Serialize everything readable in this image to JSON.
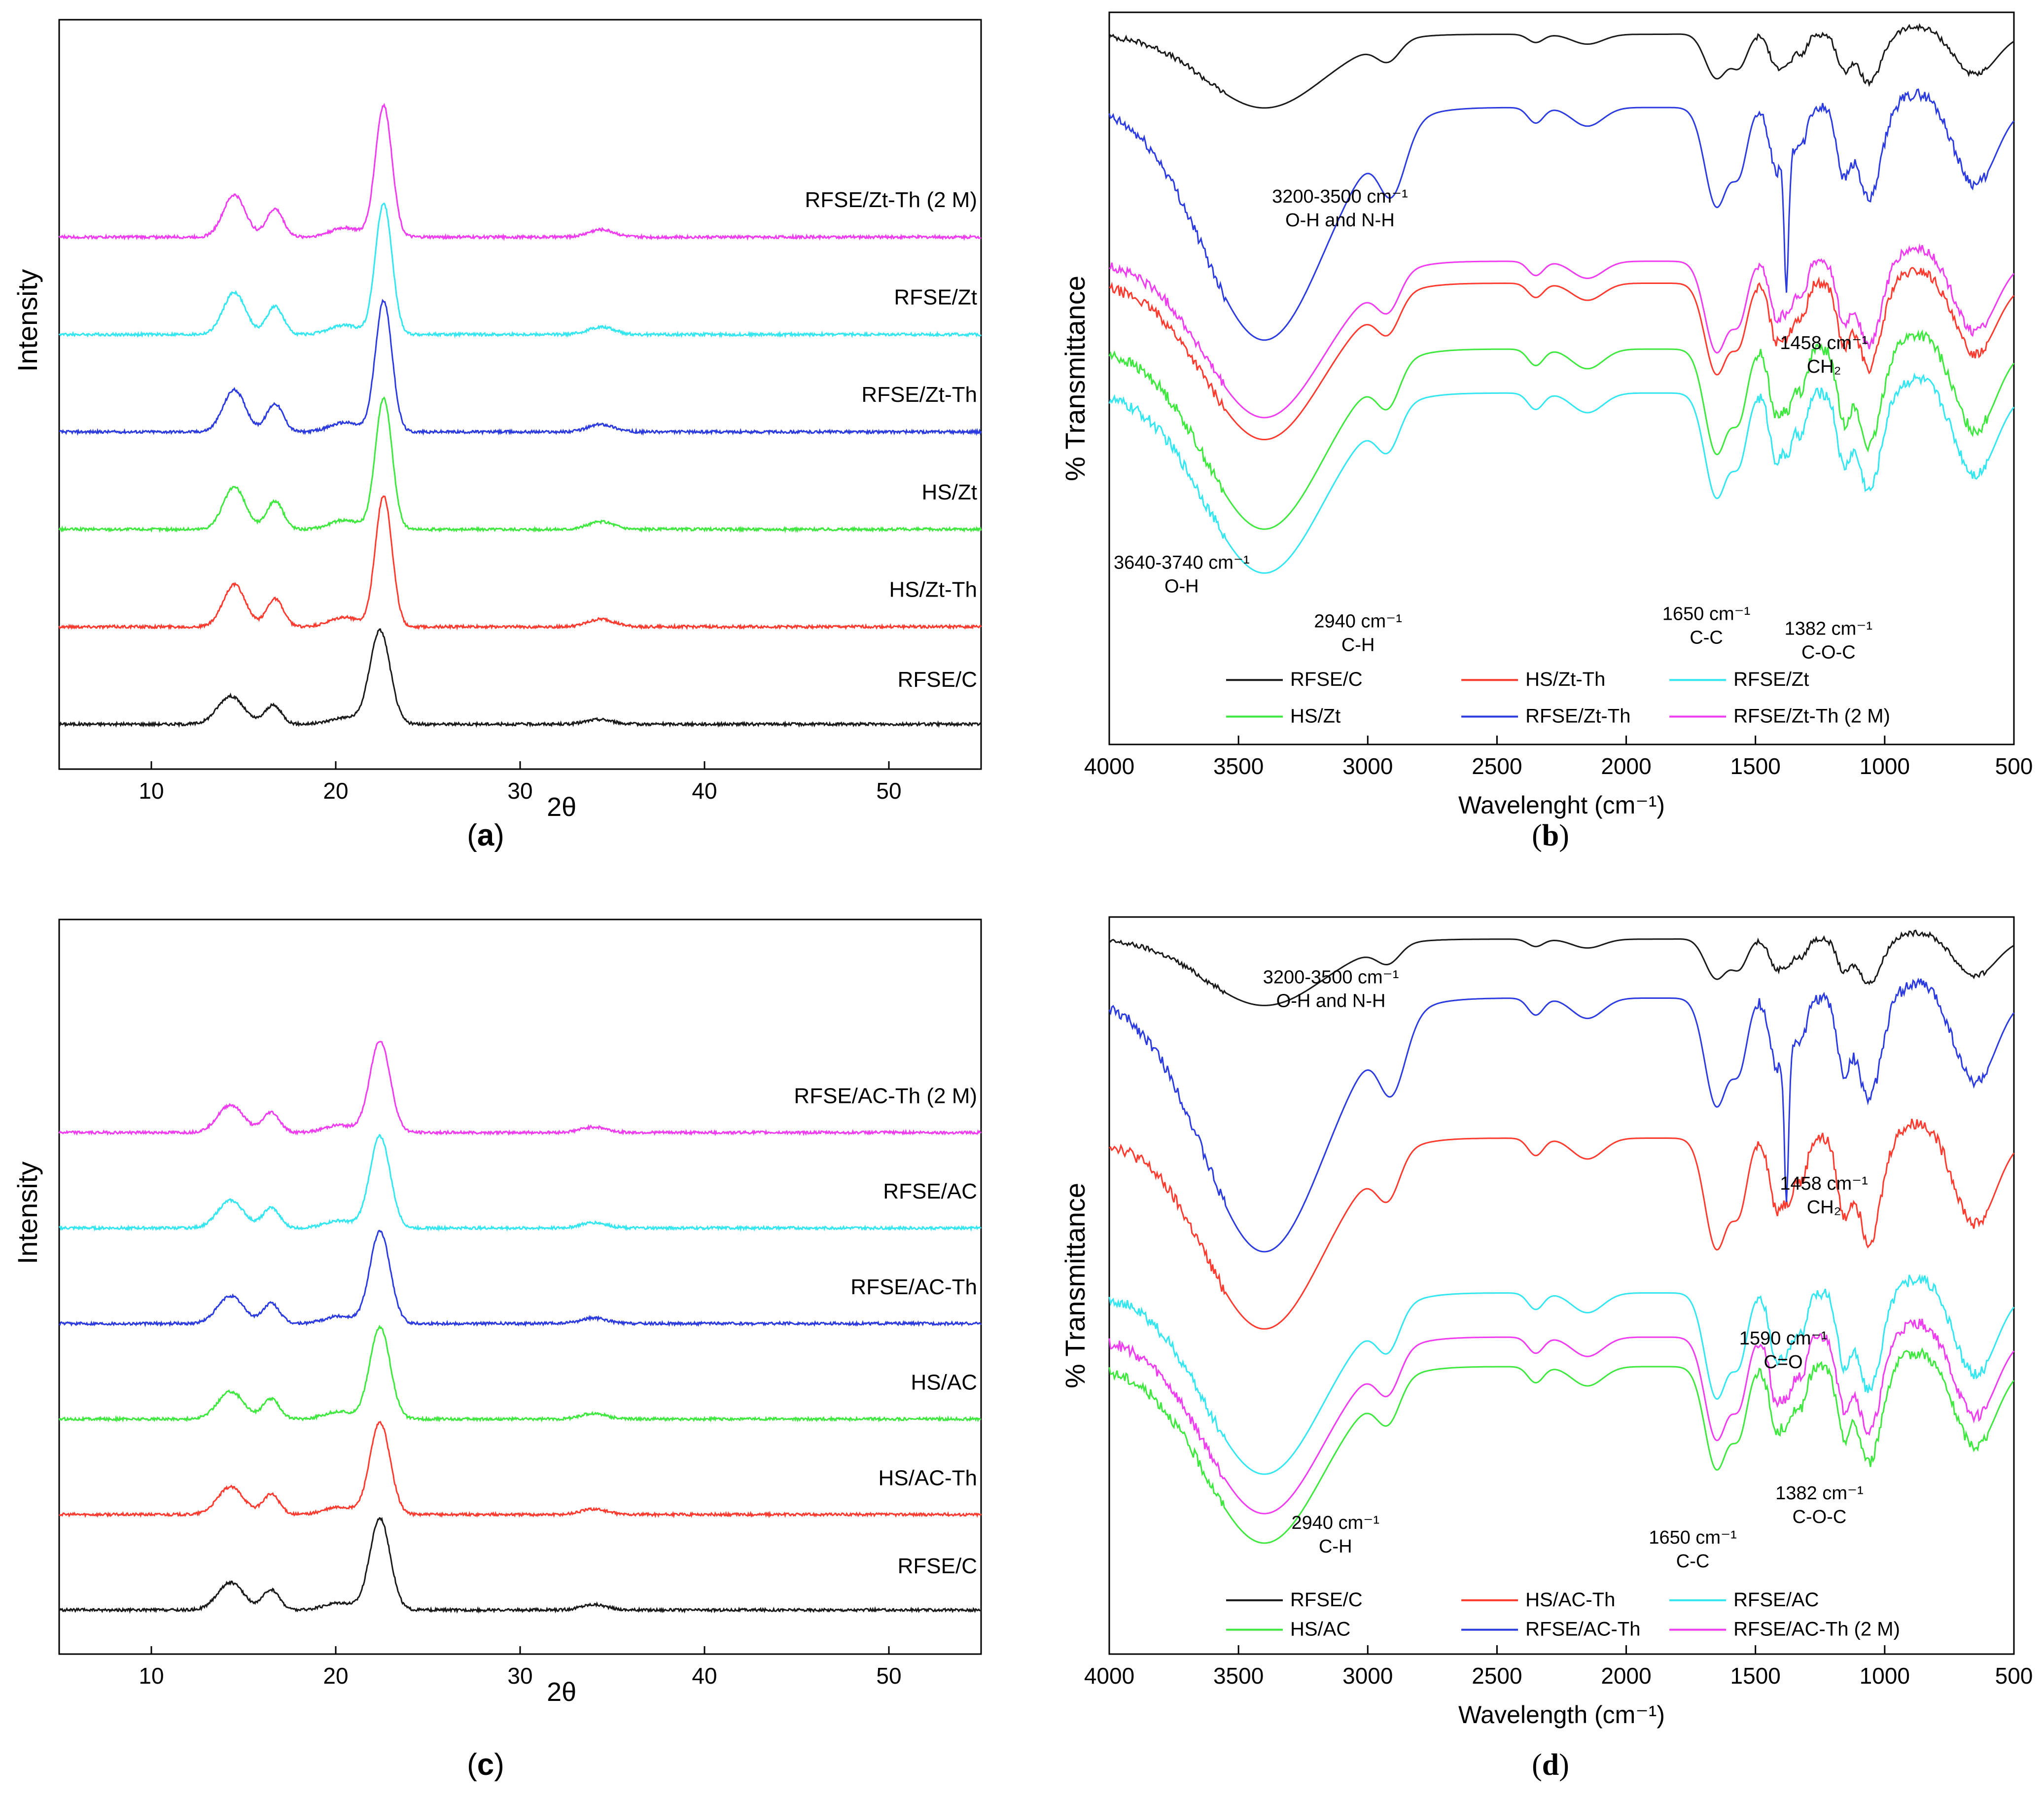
{
  "colors": {
    "black": "#1a1a1a",
    "red": "#ff3b30",
    "cyan": "#33e6f0",
    "green": "#3ee83e",
    "blue": "#2b3be0",
    "magenta": "#f03cf0"
  },
  "chart_data": [
    {
      "id": "a",
      "caption": "a",
      "type": "line",
      "title": "",
      "xlabel": "2θ",
      "ylabel": "Intensity",
      "xlim": [
        5,
        55
      ],
      "xticks": [
        10,
        20,
        30,
        40,
        50
      ],
      "grid": false,
      "series": [
        {
          "name": "RFSE/C",
          "color": "#1a1a1a",
          "offset": 0,
          "peaks": [
            [
              14.3,
              0.7,
              0.3
            ],
            [
              16.6,
              0.45,
              0.2
            ],
            [
              20.5,
              0.8,
              0.07
            ],
            [
              22.4,
              0.55,
              1.0
            ],
            [
              34.3,
              0.7,
              0.05
            ]
          ]
        },
        {
          "name": "HS/Zt-Th",
          "color": "#ff3b30",
          "offset": 1,
          "peaks": [
            [
              14.5,
              0.6,
              0.45
            ],
            [
              16.7,
              0.45,
              0.3
            ],
            [
              20.5,
              0.8,
              0.1
            ],
            [
              22.6,
              0.45,
              1.4
            ],
            [
              34.4,
              0.7,
              0.08
            ]
          ]
        },
        {
          "name": "HS/Zt",
          "color": "#3ee83e",
          "offset": 2,
          "peaks": [
            [
              14.5,
              0.6,
              0.45
            ],
            [
              16.7,
              0.45,
              0.3
            ],
            [
              20.5,
              0.8,
              0.1
            ],
            [
              22.6,
              0.45,
              1.4
            ],
            [
              34.4,
              0.7,
              0.08
            ]
          ]
        },
        {
          "name": "RFSE/Zt-Th",
          "color": "#2b3be0",
          "offset": 3,
          "peaks": [
            [
              14.5,
              0.6,
              0.45
            ],
            [
              16.7,
              0.45,
              0.3
            ],
            [
              20.5,
              0.8,
              0.1
            ],
            [
              22.6,
              0.45,
              1.4
            ],
            [
              34.4,
              0.7,
              0.08
            ]
          ]
        },
        {
          "name": "RFSE/Zt",
          "color": "#33e6f0",
          "offset": 4,
          "peaks": [
            [
              14.5,
              0.6,
              0.45
            ],
            [
              16.7,
              0.45,
              0.3
            ],
            [
              20.5,
              0.8,
              0.1
            ],
            [
              22.6,
              0.45,
              1.4
            ],
            [
              34.4,
              0.7,
              0.08
            ]
          ]
        },
        {
          "name": "RFSE/Zt-Th (2 M)",
          "color": "#f03cf0",
          "offset": 5,
          "peaks": [
            [
              14.5,
              0.6,
              0.45
            ],
            [
              16.7,
              0.45,
              0.3
            ],
            [
              20.5,
              0.8,
              0.1
            ],
            [
              22.6,
              0.45,
              1.4
            ],
            [
              34.4,
              0.7,
              0.08
            ]
          ]
        }
      ]
    },
    {
      "id": "b",
      "caption": "b",
      "type": "line",
      "title": "",
      "xlabel": "Wavelenght (cm⁻¹)",
      "ylabel": "% Transmittance",
      "xlim": [
        4000,
        500
      ],
      "xticks": [
        4000,
        3500,
        3000,
        2500,
        2000,
        1500,
        1000,
        500
      ],
      "grid": false,
      "series": [
        {
          "name": "RFSE/C",
          "color": "#1a1a1a"
        },
        {
          "name": "HS/Zt",
          "color": "#3ee83e"
        },
        {
          "name": "HS/Zt-Th",
          "color": "#ff3b30"
        },
        {
          "name": "RFSE/Zt-Th",
          "color": "#2b3be0"
        },
        {
          "name": "RFSE/Zt",
          "color": "#33e6f0"
        },
        {
          "name": "RFSE/Zt-Th (2 M)",
          "color": "#f03cf0"
        }
      ],
      "annotations": [
        {
          "lines": [
            "3200-3500 cm⁻¹",
            "O-H and N-H"
          ],
          "x": 3350
        },
        {
          "lines": [
            "1458 cm⁻¹",
            "CH₂"
          ],
          "x": 1458
        },
        {
          "lines": [
            "3640-3740 cm⁻¹",
            "O-H"
          ],
          "x": 3690
        },
        {
          "lines": [
            "2940 cm⁻¹",
            "C-H"
          ],
          "x": 2940
        },
        {
          "lines": [
            "1650 cm⁻¹",
            "C-C"
          ],
          "x": 1650
        },
        {
          "lines": [
            "1382 cm⁻¹",
            "C-O-C"
          ],
          "x": 1382
        }
      ]
    },
    {
      "id": "c",
      "caption": "c",
      "type": "line",
      "title": "",
      "xlabel": "2θ",
      "ylabel": "Intensity",
      "xlim": [
        5,
        55
      ],
      "xticks": [
        10,
        20,
        30,
        40,
        50
      ],
      "grid": false,
      "series": [
        {
          "name": "RFSE/C",
          "color": "#1a1a1a",
          "offset": 0,
          "peaks": [
            [
              14.3,
              0.7,
              0.3
            ],
            [
              16.5,
              0.45,
              0.22
            ],
            [
              20.2,
              0.8,
              0.08
            ],
            [
              22.4,
              0.55,
              1.0
            ],
            [
              34.0,
              0.7,
              0.06
            ]
          ]
        },
        {
          "name": "HS/AC-Th",
          "color": "#ff3b30",
          "offset": 1,
          "peaks": [
            [
              14.3,
              0.7,
              0.3
            ],
            [
              16.5,
              0.45,
              0.22
            ],
            [
              20.2,
              0.8,
              0.08
            ],
            [
              22.4,
              0.55,
              1.0
            ],
            [
              34.0,
              0.7,
              0.06
            ]
          ]
        },
        {
          "name": "HS/AC",
          "color": "#3ee83e",
          "offset": 2,
          "peaks": [
            [
              14.3,
              0.7,
              0.3
            ],
            [
              16.5,
              0.45,
              0.22
            ],
            [
              20.2,
              0.8,
              0.08
            ],
            [
              22.4,
              0.55,
              1.0
            ],
            [
              34.0,
              0.7,
              0.06
            ]
          ]
        },
        {
          "name": "RFSE/AC-Th",
          "color": "#2b3be0",
          "offset": 3,
          "peaks": [
            [
              14.3,
              0.7,
              0.3
            ],
            [
              16.5,
              0.45,
              0.22
            ],
            [
              20.2,
              0.8,
              0.08
            ],
            [
              22.4,
              0.55,
              1.0
            ],
            [
              34.0,
              0.7,
              0.06
            ]
          ]
        },
        {
          "name": "RFSE/AC",
          "color": "#33e6f0",
          "offset": 4,
          "peaks": [
            [
              14.3,
              0.7,
              0.3
            ],
            [
              16.5,
              0.45,
              0.22
            ],
            [
              20.2,
              0.8,
              0.08
            ],
            [
              22.4,
              0.55,
              1.0
            ],
            [
              34.0,
              0.7,
              0.06
            ]
          ]
        },
        {
          "name": "RFSE/AC-Th (2 M)",
          "color": "#f03cf0",
          "offset": 5,
          "peaks": [
            [
              14.3,
              0.7,
              0.3
            ],
            [
              16.5,
              0.45,
              0.22
            ],
            [
              20.2,
              0.8,
              0.08
            ],
            [
              22.4,
              0.55,
              1.0
            ],
            [
              34.0,
              0.7,
              0.06
            ]
          ]
        }
      ]
    },
    {
      "id": "d",
      "caption": "d",
      "type": "line",
      "title": "",
      "xlabel": "Wavelength (cm⁻¹)",
      "ylabel": "% Transmittance",
      "xlim": [
        4000,
        500
      ],
      "xticks": [
        4000,
        3500,
        3000,
        2500,
        2000,
        1500,
        1000,
        500
      ],
      "grid": false,
      "series": [
        {
          "name": "RFSE/C",
          "color": "#1a1a1a"
        },
        {
          "name": "HS/AC",
          "color": "#3ee83e"
        },
        {
          "name": "HS/AC-Th",
          "color": "#ff3b30"
        },
        {
          "name": "RFSE/AC-Th",
          "color": "#2b3be0"
        },
        {
          "name": "RFSE/AC",
          "color": "#33e6f0"
        },
        {
          "name": "RFSE/AC-Th (2 M)",
          "color": "#f03cf0"
        }
      ],
      "annotations": [
        {
          "lines": [
            "3200-3500 cm⁻¹",
            "O-H and N-H"
          ],
          "x": 3350
        },
        {
          "lines": [
            "1458 cm⁻¹",
            "CH₂"
          ],
          "x": 1458
        },
        {
          "lines": [
            "1590 cm⁻¹",
            "C=O"
          ],
          "x": 1590
        },
        {
          "lines": [
            "2940 cm⁻¹",
            "C-H"
          ],
          "x": 2940
        },
        {
          "lines": [
            "1650 cm⁻¹",
            "C-C"
          ],
          "x": 1650
        },
        {
          "lines": [
            "1382 cm⁻¹",
            "C-O-C"
          ],
          "x": 1382
        }
      ]
    }
  ]
}
